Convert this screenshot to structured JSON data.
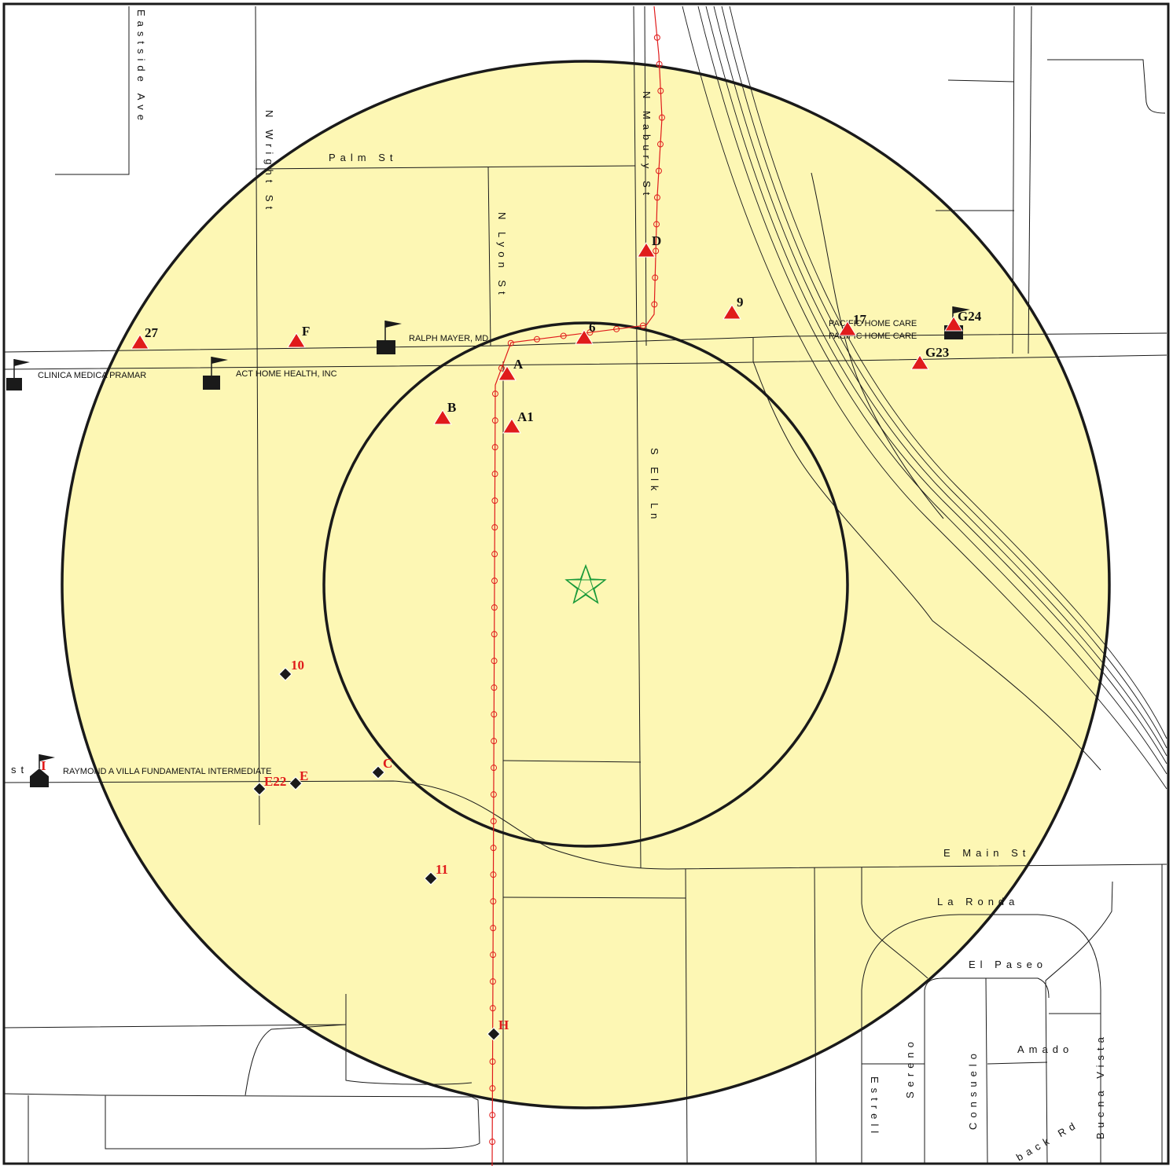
{
  "colors": {
    "buffer_fill": "#fdf7b4",
    "road": "#1a1a1a",
    "route": "#e01b1b",
    "site_triangle": "#e01b1b",
    "center_star": "#1a9a3a",
    "facility": "#1a1a1a"
  },
  "streets": {
    "eastside_ave": "Eastside Ave",
    "n_wright_st": "N Wright St",
    "palm_st": "Palm St",
    "n_lyon_st": "N Lyon St",
    "n_mabury_st": "N Mabury St",
    "s_elk_ln": "S Elk Ln",
    "e_main_st": "E Main St",
    "la_ronda": "La Ronda",
    "el_paseo": "El Paseo",
    "amado": "Amado",
    "estrell": "Estrell",
    "sereno": "Sereno",
    "consuelo": "Consuelo",
    "buena_vista": "Buena Vista",
    "back_rd": "back Rd",
    "st_fragment": "st"
  },
  "facilities": {
    "clinica": "CLINICA MEDICA PRAMAR",
    "act_home": "ACT HOME HEALTH, INC",
    "ralph_mayer": "RALPH MAYER, MD",
    "pacific_1": "PACIFIC HOME CARE",
    "pacific_2": "PACIFIC HOME CARE",
    "raymond": "RAYMOND A VILLA FUNDAMENTAL INTERMEDIATE"
  },
  "sites": {
    "triangles": {
      "s27": "27",
      "F": "F",
      "D": "D",
      "s9": "9",
      "s6": "6",
      "A": "A",
      "B": "B",
      "A1": "A1",
      "s17": "17",
      "G24": "G24",
      "G23": "G23"
    },
    "diamonds": {
      "s10": "10",
      "C": "C",
      "E": "E",
      "E22": "E22",
      "s11": "11",
      "H": "H",
      "I": "I"
    }
  },
  "center": {
    "icon": "star-icon"
  }
}
